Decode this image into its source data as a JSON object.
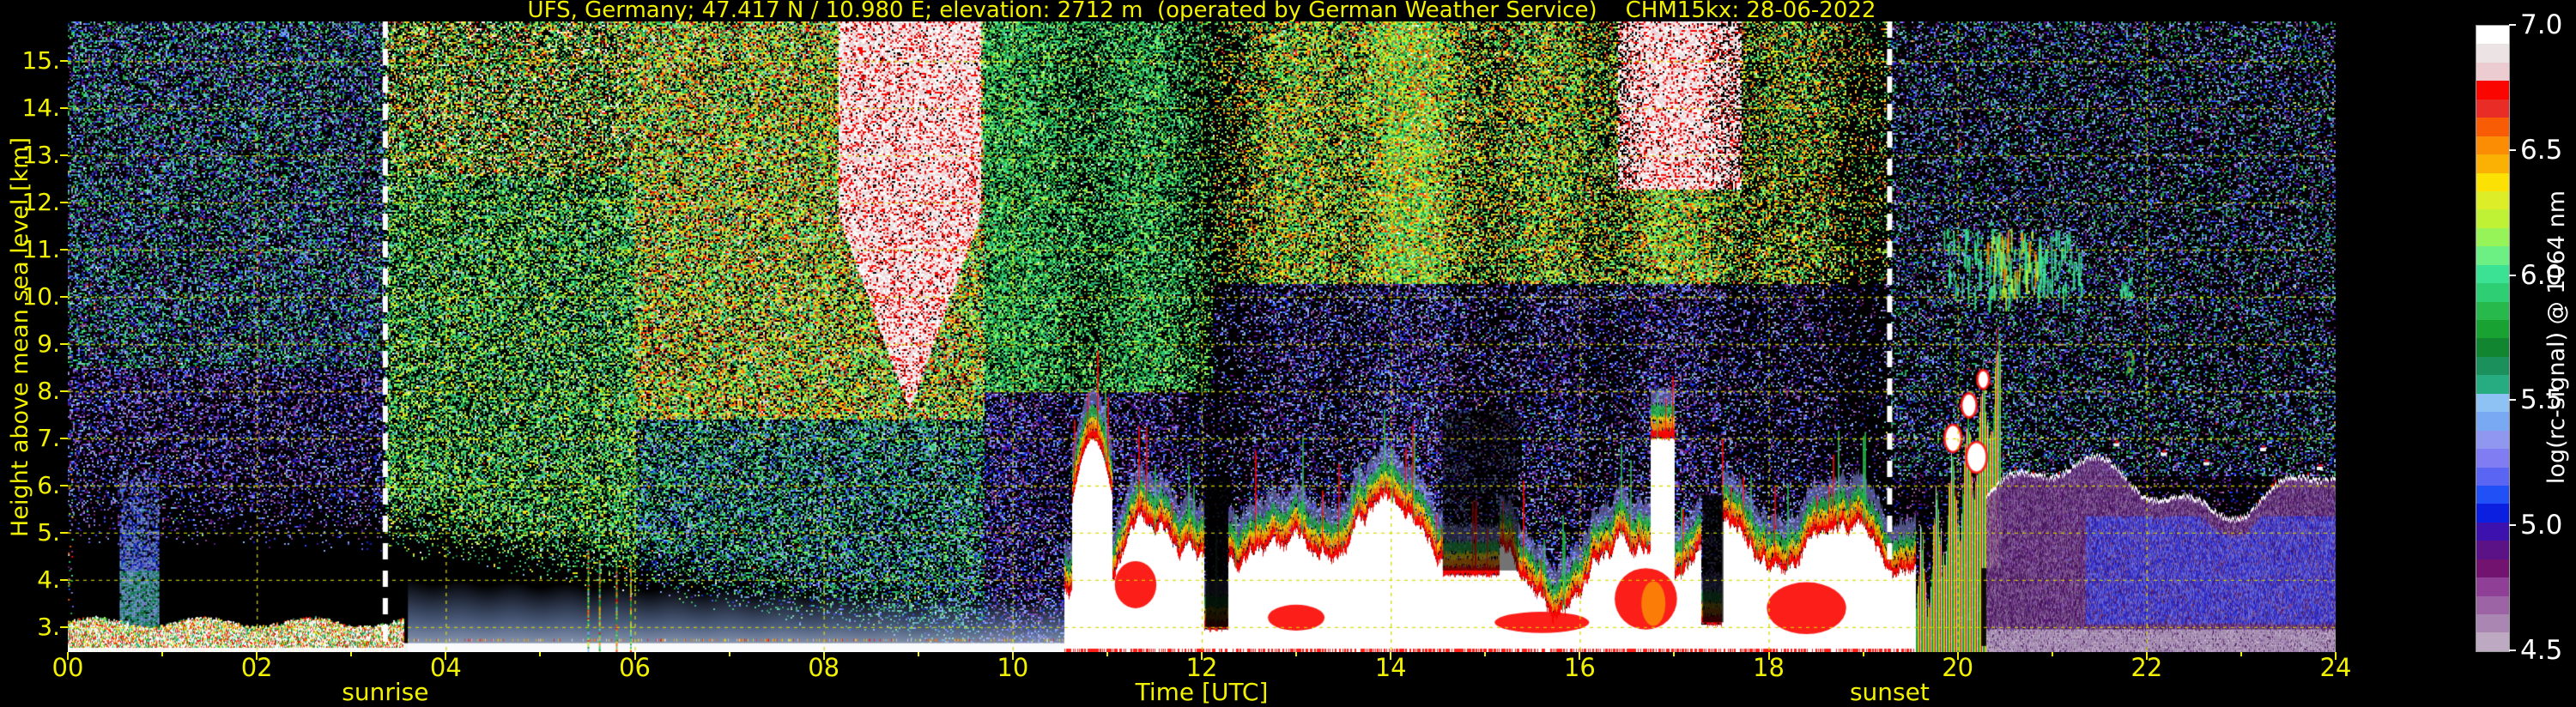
{
  "title": "UFS, Germany; 47.417 N / 10.980 E; elevation: 2712 m  (operated by German Weather Service)    CHM15kx: 28-06-2022",
  "station": {
    "name": "UFS, Germany",
    "latitude": "47.417 N",
    "longitude": "10.980 E",
    "elevation": "2712 m",
    "operator": "operated by German Weather Service",
    "instrument": "CHM15kx",
    "date": "28-06-2022"
  },
  "colors": {
    "background": "#000000",
    "axis_text": "#f2f200",
    "grid": "#d6d600",
    "sun_line": "#ffffff",
    "colorbar_text": "#ffffff"
  },
  "y_axis": {
    "label": "Height above mean sea level [km]",
    "ticks": [
      "15.",
      "14.",
      "13.",
      "12.",
      "11.",
      "10.",
      "9.",
      "8.",
      "7.",
      "6.",
      "5.",
      "4.",
      "3."
    ],
    "tick_values": [
      15,
      14,
      13,
      12,
      11,
      10,
      9,
      8,
      7,
      6,
      5,
      4,
      3
    ]
  },
  "x_axis": {
    "label": "Time [UTC]",
    "ticks": [
      "00",
      "02",
      "04",
      "06",
      "08",
      "10",
      "12",
      "14",
      "16",
      "18",
      "20",
      "22",
      "24"
    ],
    "tick_values": [
      0,
      2,
      4,
      6,
      8,
      10,
      12,
      14,
      16,
      18,
      20,
      22,
      24
    ]
  },
  "annotations": {
    "sunrise": {
      "label": "sunrise",
      "time_hours": 3.36
    },
    "sunset": {
      "label": "sunset",
      "time_hours": 19.28
    }
  },
  "colorbar": {
    "label": "log(rc-signal) @ 1064 nm",
    "ticks": [
      "7.0",
      "6.5",
      "6.0",
      "5.5",
      "5.0",
      "4.5"
    ],
    "tick_values": [
      7.0,
      6.5,
      6.0,
      5.5,
      5.0,
      4.5
    ],
    "range": [
      4.5,
      7.0
    ],
    "colors": [
      "#ffffff",
      "#ece3e4",
      "#edccd1",
      "#fb0500",
      "#e92c25",
      "#f85c05",
      "#fa8d04",
      "#fbb004",
      "#fbe104",
      "#ddee29",
      "#bff135",
      "#97f458",
      "#6cef83",
      "#3ce294",
      "#2dce74",
      "#27b94c",
      "#18a232",
      "#128531",
      "#1b8f5c",
      "#27ab80",
      "#8ec2f4",
      "#7aa9f3",
      "#8f97f0",
      "#7f7df1",
      "#5a66f3",
      "#2150f7",
      "#0a1fe0",
      "#3c11ad",
      "#5c1287",
      "#731370",
      "#8f3f95",
      "#9c64a5",
      "#aa87b3",
      "#bda9c2"
    ]
  },
  "chart_data": {
    "type": "heatmap",
    "title": "UFS, Germany; 47.417 N / 10.980 E; elevation: 2712 m  (operated by German Weather Service)    CHM15kx: 28-06-2022",
    "xlabel": "Time [UTC]",
    "ylabel": "Height above mean sea level [km]",
    "zlabel": "log(rc-signal) @ 1064 nm",
    "x_range_hours": [
      0,
      24
    ],
    "y_range_km": [
      2.47,
      15.84
    ],
    "value_range": [
      4.5,
      7.0
    ],
    "grid": "yellow dashed, every 2 h and every 1 km",
    "sunrise_hours": 3.36,
    "sunset_hours": 19.28,
    "features": [
      {
        "name": "surface-echo-band",
        "t": [
          0,
          24
        ],
        "h": [
          2.47,
          3.2
        ],
        "value": 7.0,
        "desc": "bright near-surface echo band, white core with red/orange/green fringe"
      },
      {
        "name": "night-aerosol-column",
        "t": [
          0.55,
          0.95
        ],
        "h": [
          2.6,
          6.3
        ],
        "value": 5.5,
        "desc": "light blue/periwinkle column before sunrise"
      },
      {
        "name": "shallow-aerosol-layer",
        "t": [
          3.6,
          10.6
        ],
        "h": [
          2.6,
          3.95
        ],
        "value": 5.5,
        "desc": "smooth light-blue aerosol layer after sunrise"
      },
      {
        "name": "white-noise-plume",
        "t": [
          8.15,
          9.65
        ],
        "h": [
          7.6,
          15.84
        ],
        "value": 7.0,
        "desc": "dense white solar-background noise plume descending from top"
      },
      {
        "name": "convective-clouds",
        "t": [
          10.55,
          19.55
        ],
        "h": [
          2.6,
          6.6
        ],
        "value": 7.0,
        "desc": "white cumulus cores with red/orange rims and green/blue fringes, tops undulating 4-6.5 km"
      },
      {
        "name": "evening-plumes",
        "t": [
          19.55,
          20.45
        ],
        "h": [
          2.6,
          8.2
        ],
        "value": 6.5,
        "desc": "tall green/red/white plumes rising just after sunset"
      },
      {
        "name": "night-stratus",
        "t": [
          20.3,
          24
        ],
        "h": [
          2.47,
          6.5
        ],
        "value": 5.0,
        "desc": "purple/mauve stratified layer with sharp white top line and deep-blue patch after 21:20"
      },
      {
        "name": "cirrus-streaks",
        "t": [
          19.85,
          21.3
        ],
        "h": [
          9.7,
          11.6
        ],
        "value": 6.1,
        "desc": "green/yellow cirrus streaks near 10-11.5 km, brightest 20:25-20:50"
      },
      {
        "name": "daytime-noise",
        "t": [
          3.36,
          19.28
        ],
        "h": [
          3.4,
          15.84
        ],
        "value": 6.2,
        "desc": "orange/green solar background speckle, white patches 16.5-17.7 h above 12.3 km"
      }
    ]
  }
}
